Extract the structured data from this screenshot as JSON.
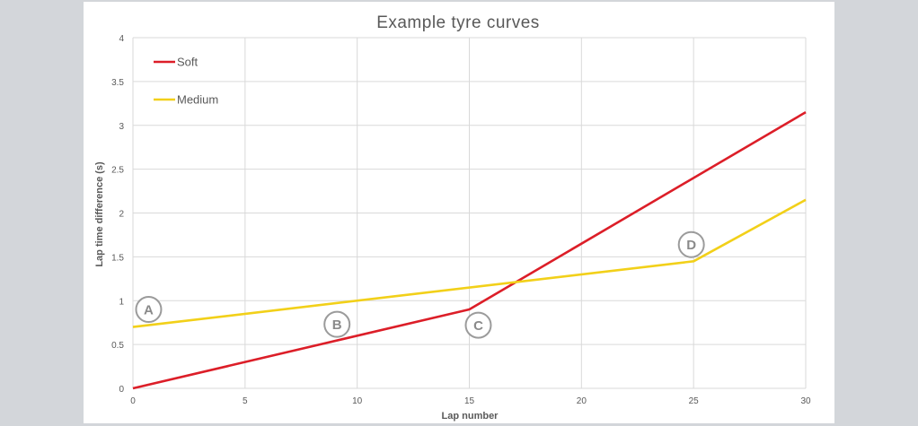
{
  "chart_data": {
    "type": "line",
    "title": "Example tyre curves",
    "xlabel": "Lap number",
    "ylabel": "Lap time difference (s)",
    "xlim": [
      0,
      30
    ],
    "ylim": [
      0,
      4
    ],
    "x_ticks": [
      0,
      5,
      10,
      15,
      20,
      25,
      30
    ],
    "y_ticks": [
      0,
      0.5,
      1,
      1.5,
      2,
      2.5,
      3,
      3.5,
      4
    ],
    "grid": true,
    "legend_position": "top-left",
    "series": [
      {
        "name": "Soft",
        "color": "#dc1e28",
        "points": [
          [
            0,
            0
          ],
          [
            15,
            0.9
          ],
          [
            30,
            3.15
          ]
        ]
      },
      {
        "name": "Medium",
        "color": "#f2d019",
        "points": [
          [
            0,
            0.7
          ],
          [
            25,
            1.45
          ],
          [
            30,
            2.15
          ]
        ]
      }
    ],
    "annotations": [
      {
        "label": "A",
        "x": 0.7,
        "y": 0.9
      },
      {
        "label": "B",
        "x": 9.1,
        "y": 0.73
      },
      {
        "label": "C",
        "x": 15.4,
        "y": 0.72
      },
      {
        "label": "D",
        "x": 24.9,
        "y": 1.64
      }
    ]
  }
}
